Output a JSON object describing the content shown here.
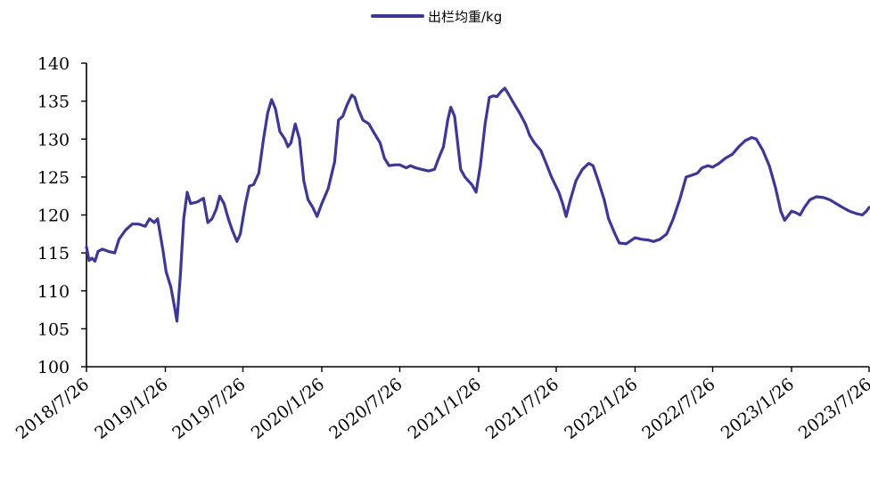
{
  "chart_data": {
    "type": "line",
    "title": "",
    "xlabel": "",
    "ylabel": "",
    "ylim": [
      100,
      140
    ],
    "y_ticks": [
      100,
      105,
      110,
      115,
      120,
      125,
      130,
      135,
      140
    ],
    "x_tick_labels": [
      "2018/7/26",
      "2019/1/26",
      "2019/7/26",
      "2020/1/26",
      "2020/7/26",
      "2021/1/26",
      "2021/7/26",
      "2022/1/26",
      "2022/7/26",
      "2023/1/26",
      "2023/7/26"
    ],
    "x_range": [
      "2018/7/26",
      "2023/7/26"
    ],
    "grid": false,
    "legend": {
      "position": "top-center"
    },
    "colors": {
      "series": "#3d3896"
    },
    "series": [
      {
        "name": "出栏均重/kg",
        "points": [
          [
            "2018/7/26",
            115.8
          ],
          [
            "2018/8/1",
            114.0
          ],
          [
            "2018/8/8",
            114.3
          ],
          [
            "2018/8/15",
            113.9
          ],
          [
            "2018/8/22",
            115.2
          ],
          [
            "2018/9/1",
            115.5
          ],
          [
            "2018/9/15",
            115.2
          ],
          [
            "2018/9/30",
            115.0
          ],
          [
            "2018/10/10",
            116.8
          ],
          [
            "2018/10/25",
            118.0
          ],
          [
            "2018/11/10",
            118.8
          ],
          [
            "2018/11/25",
            118.8
          ],
          [
            "2018/12/10",
            118.5
          ],
          [
            "2018/12/20",
            119.5
          ],
          [
            "2018/12/31",
            119.0
          ],
          [
            "2019/1/8",
            119.5
          ],
          [
            "2019/1/20",
            115.5
          ],
          [
            "2019/1/28",
            112.5
          ],
          [
            "2019/2/8",
            110.5
          ],
          [
            "2019/2/16",
            108.0
          ],
          [
            "2019/2/22",
            106.0
          ],
          [
            "2019/3/2",
            112.0
          ],
          [
            "2019/3/10",
            119.5
          ],
          [
            "2019/3/18",
            123.0
          ],
          [
            "2019/3/26",
            121.5
          ],
          [
            "2019/4/10",
            121.7
          ],
          [
            "2019/4/25",
            122.2
          ],
          [
            "2019/5/5",
            119.0
          ],
          [
            "2019/5/15",
            119.5
          ],
          [
            "2019/5/25",
            120.8
          ],
          [
            "2019/6/2",
            122.5
          ],
          [
            "2019/6/12",
            121.5
          ],
          [
            "2019/6/22",
            119.5
          ],
          [
            "2019/7/1",
            118.0
          ],
          [
            "2019/7/12",
            116.5
          ],
          [
            "2019/7/20",
            117.5
          ],
          [
            "2019/8/1",
            121.5
          ],
          [
            "2019/8/10",
            123.8
          ],
          [
            "2019/8/20",
            124.0
          ],
          [
            "2019/9/1",
            125.5
          ],
          [
            "2019/9/12",
            130.0
          ],
          [
            "2019/9/22",
            133.5
          ],
          [
            "2019/10/1",
            135.2
          ],
          [
            "2019/10/10",
            134.0
          ],
          [
            "2019/10/20",
            131.0
          ],
          [
            "2019/11/1",
            130.0
          ],
          [
            "2019/11/8",
            129.0
          ],
          [
            "2019/11/15",
            129.5
          ],
          [
            "2019/11/25",
            132.0
          ],
          [
            "2019/12/5",
            130.0
          ],
          [
            "2019/12/15",
            124.5
          ],
          [
            "2019/12/25",
            122.0
          ],
          [
            "2020/1/5",
            121.0
          ],
          [
            "2020/1/15",
            119.8
          ],
          [
            "2020/1/26",
            121.5
          ],
          [
            "2020/2/10",
            123.5
          ],
          [
            "2020/2/25",
            127.0
          ],
          [
            "2020/3/5",
            132.5
          ],
          [
            "2020/3/15",
            133.0
          ],
          [
            "2020/3/25",
            134.5
          ],
          [
            "2020/4/5",
            135.8
          ],
          [
            "2020/4/12",
            135.5
          ],
          [
            "2020/4/20",
            134.0
          ],
          [
            "2020/5/1",
            132.5
          ],
          [
            "2020/5/15",
            132.0
          ],
          [
            "2020/5/25",
            131.0
          ],
          [
            "2020/6/10",
            129.5
          ],
          [
            "2020/6/20",
            127.5
          ],
          [
            "2020/7/1",
            126.5
          ],
          [
            "2020/7/15",
            126.6
          ],
          [
            "2020/7/26",
            126.6
          ],
          [
            "2020/8/10",
            126.2
          ],
          [
            "2020/8/20",
            126.5
          ],
          [
            "2020/9/1",
            126.2
          ],
          [
            "2020/9/15",
            126.0
          ],
          [
            "2020/10/1",
            125.8
          ],
          [
            "2020/10/15",
            126.0
          ],
          [
            "2020/10/25",
            127.5
          ],
          [
            "2020/11/5",
            129.0
          ],
          [
            "2020/11/15",
            132.5
          ],
          [
            "2020/11/22",
            134.2
          ],
          [
            "2020/12/1",
            133.0
          ],
          [
            "2020/12/8",
            129.5
          ],
          [
            "2020/12/15",
            126.0
          ],
          [
            "2020/12/25",
            125.0
          ],
          [
            "2021/1/10",
            124.0
          ],
          [
            "2021/1/20",
            123.0
          ],
          [
            "2021/1/30",
            126.5
          ],
          [
            "2021/2/10",
            132.0
          ],
          [
            "2021/2/20",
            135.5
          ],
          [
            "2021/3/1",
            135.7
          ],
          [
            "2021/3/10",
            135.6
          ],
          [
            "2021/3/20",
            136.3
          ],
          [
            "2021/3/28",
            136.7
          ],
          [
            "2021/4/5",
            136.0
          ],
          [
            "2021/4/15",
            135.0
          ],
          [
            "2021/5/1",
            133.5
          ],
          [
            "2021/5/15",
            132.0
          ],
          [
            "2021/5/25",
            130.5
          ],
          [
            "2021/6/5",
            129.5
          ],
          [
            "2021/6/20",
            128.5
          ],
          [
            "2021/7/1",
            127.0
          ],
          [
            "2021/7/15",
            125.0
          ],
          [
            "2021/8/1",
            123.0
          ],
          [
            "2021/8/10",
            121.5
          ],
          [
            "2021/8/18",
            119.8
          ],
          [
            "2021/8/28",
            122.0
          ],
          [
            "2021/9/10",
            124.5
          ],
          [
            "2021/9/25",
            126.0
          ],
          [
            "2021/10/10",
            126.8
          ],
          [
            "2021/10/20",
            126.5
          ],
          [
            "2021/11/1",
            124.5
          ],
          [
            "2021/11/15",
            122.0
          ],
          [
            "2021/11/25",
            119.5
          ],
          [
            "2021/12/10",
            117.5
          ],
          [
            "2021/12/20",
            116.3
          ],
          [
            "2022/1/5",
            116.2
          ],
          [
            "2022/1/26",
            117.0
          ],
          [
            "2022/2/10",
            116.8
          ],
          [
            "2022/2/25",
            116.7
          ],
          [
            "2022/3/10",
            116.5
          ],
          [
            "2022/3/25",
            116.8
          ],
          [
            "2022/4/10",
            117.5
          ],
          [
            "2022/4/25",
            119.5
          ],
          [
            "2022/5/10",
            122.0
          ],
          [
            "2022/5/25",
            125.0
          ],
          [
            "2022/6/5",
            125.2
          ],
          [
            "2022/6/20",
            125.5
          ],
          [
            "2022/7/1",
            126.2
          ],
          [
            "2022/7/15",
            126.5
          ],
          [
            "2022/7/26",
            126.3
          ],
          [
            "2022/8/10",
            126.8
          ],
          [
            "2022/8/25",
            127.5
          ],
          [
            "2022/9/10",
            128.0
          ],
          [
            "2022/9/25",
            129.0
          ],
          [
            "2022/10/10",
            129.8
          ],
          [
            "2022/10/25",
            130.2
          ],
          [
            "2022/11/5",
            130.0
          ],
          [
            "2022/11/20",
            128.5
          ],
          [
            "2022/12/5",
            126.5
          ],
          [
            "2022/12/20",
            123.5
          ],
          [
            "2023/1/1",
            120.5
          ],
          [
            "2023/1/10",
            119.3
          ],
          [
            "2023/1/26",
            120.5
          ],
          [
            "2023/2/5",
            120.3
          ],
          [
            "2023/2/15",
            120.0
          ],
          [
            "2023/2/25",
            121.0
          ],
          [
            "2023/3/10",
            122.0
          ],
          [
            "2023/3/25",
            122.4
          ],
          [
            "2023/4/10",
            122.3
          ],
          [
            "2023/4/25",
            122.0
          ],
          [
            "2023/5/10",
            121.5
          ],
          [
            "2023/5/25",
            121.0
          ],
          [
            "2023/6/10",
            120.5
          ],
          [
            "2023/6/25",
            120.2
          ],
          [
            "2023/7/10",
            120.0
          ],
          [
            "2023/7/20",
            120.5
          ],
          [
            "2023/7/26",
            121.0
          ]
        ]
      }
    ]
  }
}
